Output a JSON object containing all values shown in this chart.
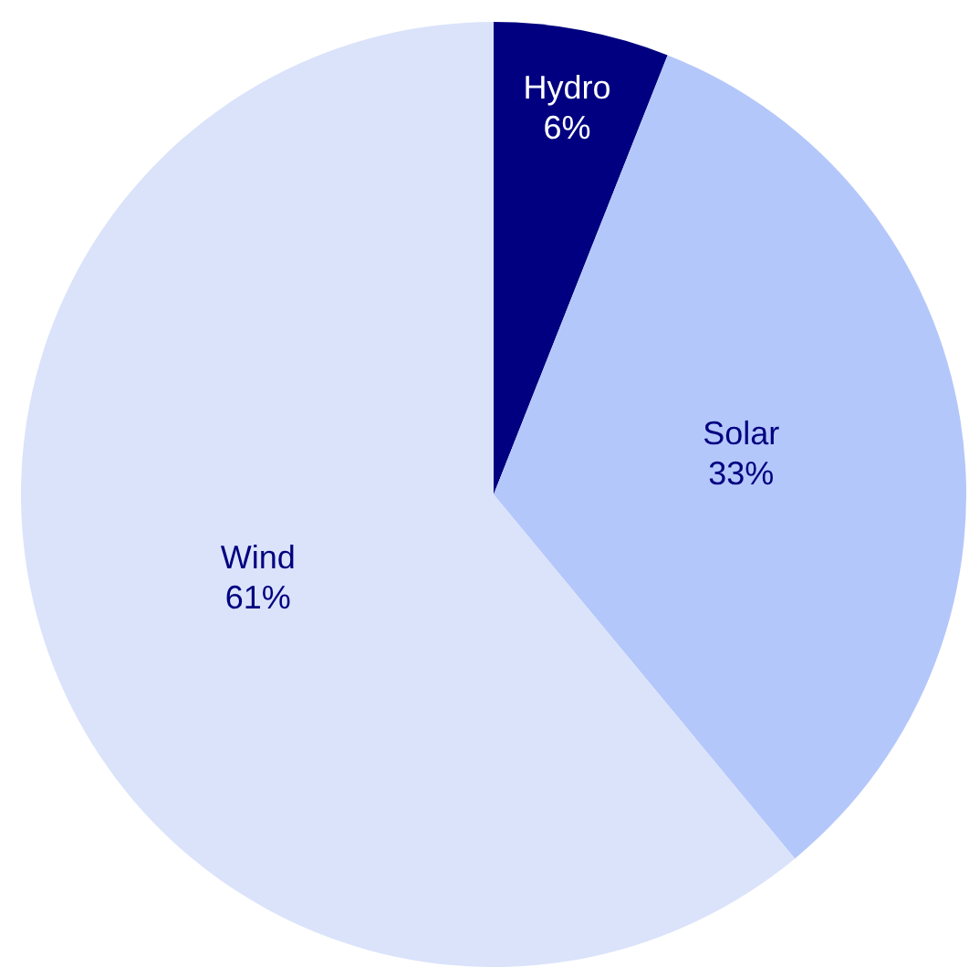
{
  "chart_data": {
    "type": "pie",
    "categories": [
      "Hydro",
      "Solar",
      "Wind"
    ],
    "values": [
      6,
      33,
      61
    ],
    "colors": [
      "#000080",
      "#b4c7fa",
      "#dae3fa"
    ],
    "value_labels": [
      "6%",
      "33%",
      "61%"
    ],
    "legend": false
  }
}
